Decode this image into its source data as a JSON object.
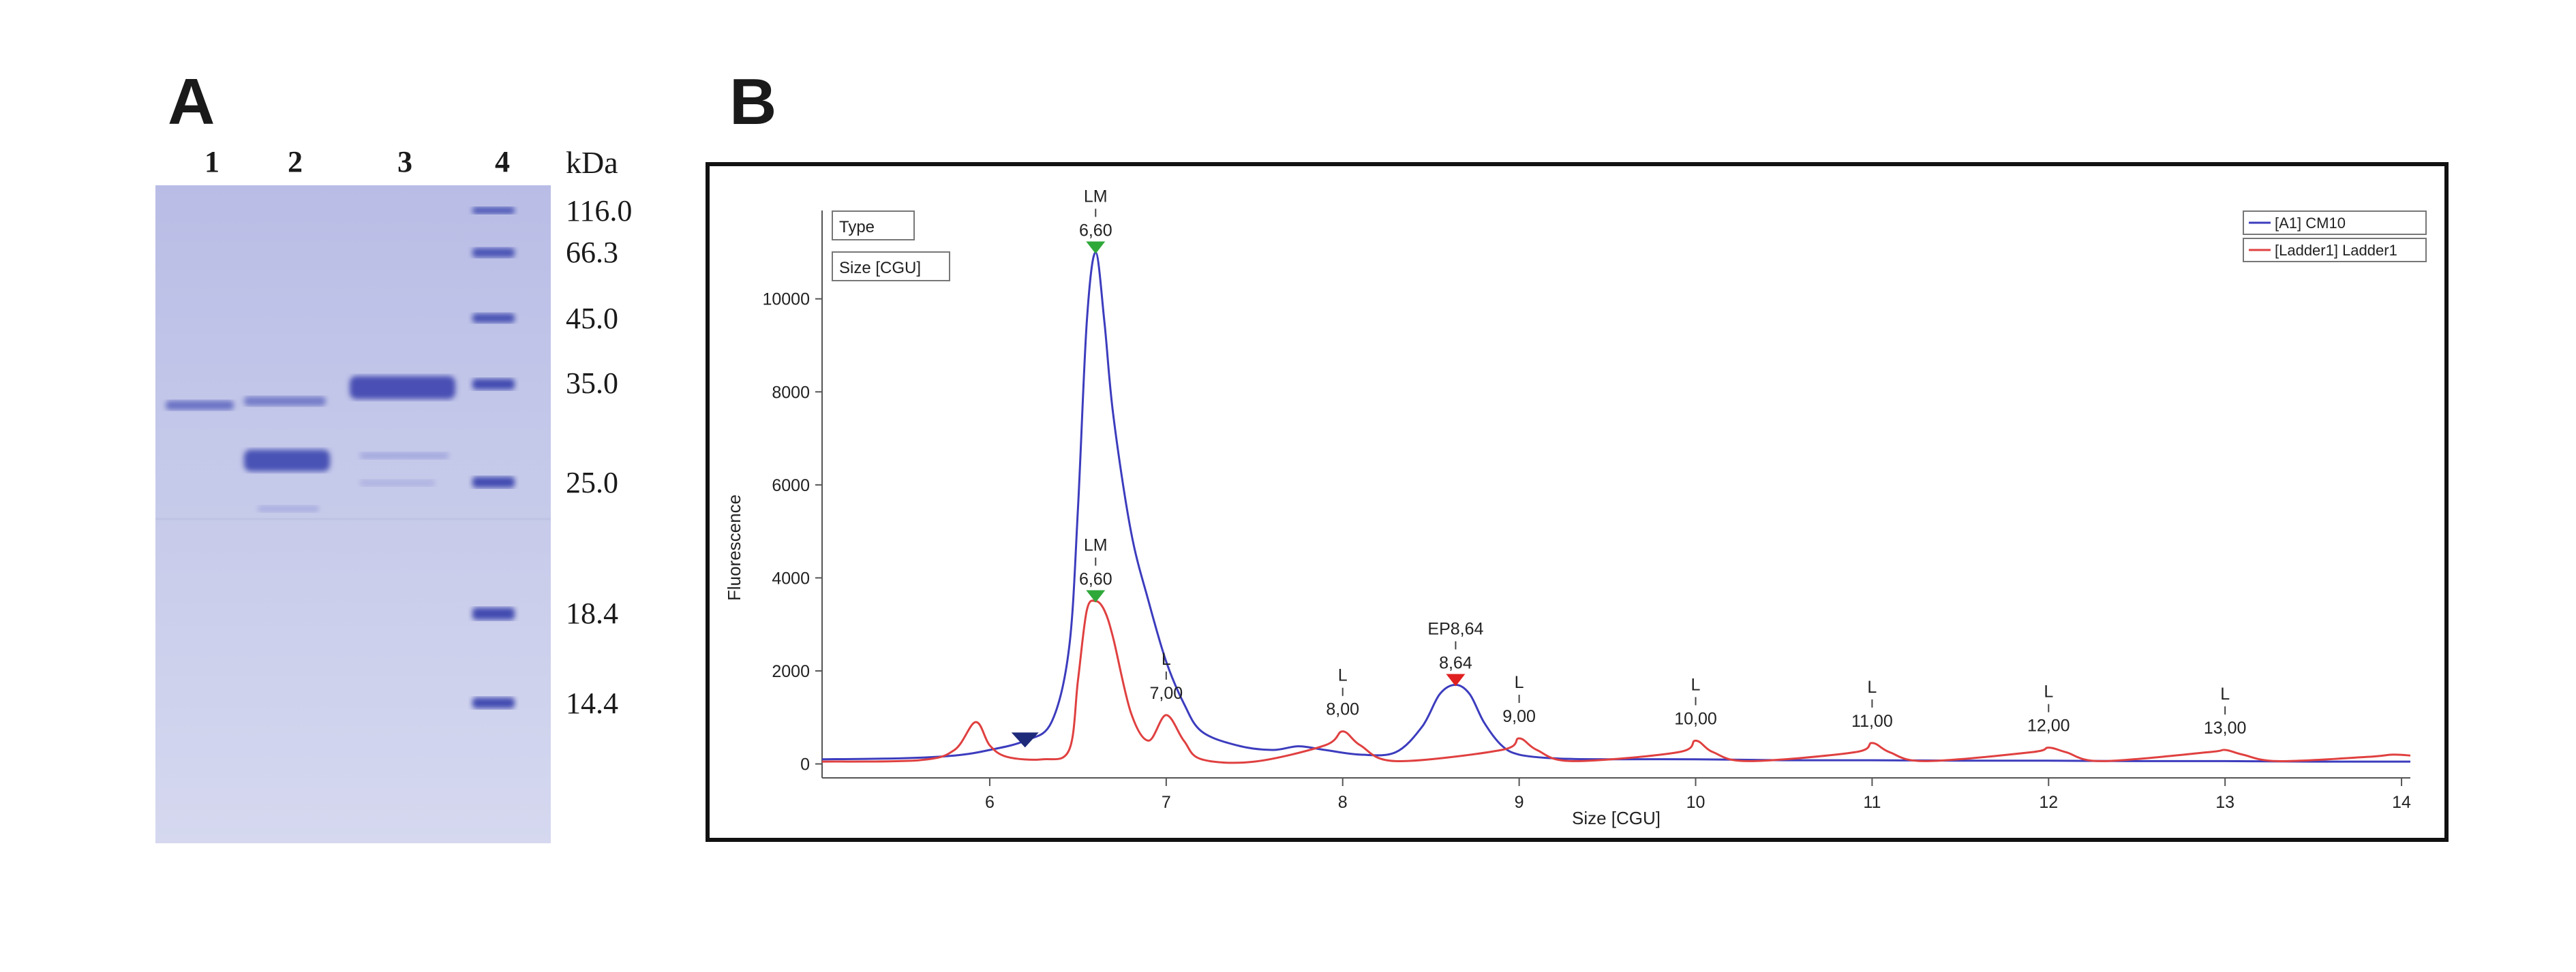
{
  "panels": {
    "a": "A",
    "b": "B"
  },
  "gel": {
    "lanes": [
      "1",
      "2",
      "3",
      "4"
    ],
    "unit": "kDa",
    "markers": [
      "116.0",
      "66.3",
      "45.0",
      "35.0",
      "25.0",
      "18.4",
      "14.4"
    ]
  },
  "chart_data": {
    "type": "line",
    "xlabel": "Size [CGU]",
    "ylabel": "Fluorescence",
    "xlim": [
      5.05,
      14.05
    ],
    "ylim": [
      -300,
      11900
    ],
    "xticks": [
      6,
      7,
      8,
      9,
      10,
      11,
      12,
      13,
      14
    ],
    "yticks": [
      0,
      2000,
      4000,
      6000,
      8000,
      10000
    ],
    "grid": false,
    "legend_position": "top-right",
    "info_boxes": [
      "Type",
      "Size [CGU]"
    ],
    "series": [
      {
        "name": "[A1] CM10",
        "color": "#3c3cbe",
        "x": [
          5.05,
          5.5,
          5.8,
          6.0,
          6.2,
          6.35,
          6.45,
          6.5,
          6.55,
          6.6,
          6.65,
          6.7,
          6.8,
          6.9,
          7.0,
          7.1,
          7.2,
          7.4,
          7.6,
          7.75,
          7.9,
          8.1,
          8.3,
          8.45,
          8.55,
          8.64,
          8.72,
          8.8,
          8.9,
          9.0,
          9.2,
          9.5,
          10.0,
          10.5,
          11.0,
          11.5,
          12.0,
          12.5,
          13.0,
          13.5,
          14.05
        ],
        "y": [
          100,
          120,
          180,
          300,
          500,
          900,
          2500,
          5500,
          9500,
          11000,
          9500,
          7500,
          5000,
          3500,
          2200,
          1300,
          700,
          400,
          300,
          380,
          300,
          200,
          250,
          800,
          1500,
          1700,
          1500,
          900,
          400,
          200,
          120,
          100,
          100,
          80,
          80,
          70,
          70,
          60,
          60,
          50,
          50
        ]
      },
      {
        "name": "[Ladder1] Ladder1",
        "color": "#e04040",
        "x": [
          5.05,
          5.6,
          5.8,
          5.92,
          6.0,
          6.1,
          6.3,
          6.45,
          6.5,
          6.55,
          6.6,
          6.65,
          6.7,
          6.8,
          6.9,
          7.0,
          7.1,
          7.2,
          7.5,
          7.9,
          8.0,
          8.1,
          8.3,
          8.9,
          9.0,
          9.1,
          9.3,
          9.9,
          10.0,
          10.1,
          10.3,
          10.9,
          11.0,
          11.1,
          11.3,
          11.9,
          12.0,
          12.1,
          12.3,
          12.9,
          13.0,
          13.1,
          13.3,
          13.8,
          13.95,
          14.05
        ],
        "y": [
          50,
          80,
          300,
          900,
          400,
          150,
          100,
          300,
          1800,
          3300,
          3500,
          3300,
          2700,
          1100,
          500,
          1050,
          500,
          100,
          50,
          400,
          700,
          400,
          60,
          300,
          550,
          300,
          60,
          250,
          500,
          250,
          60,
          250,
          450,
          250,
          60,
          250,
          350,
          250,
          60,
          250,
          300,
          200,
          60,
          150,
          200,
          180
        ]
      }
    ],
    "annotations": [
      {
        "label": "LM",
        "value": "6,60",
        "x": 6.6,
        "y": 11000,
        "marker": "green"
      },
      {
        "label": "LM",
        "value": "6,60",
        "x": 6.6,
        "y": 3500,
        "marker": "green"
      },
      {
        "label": "L",
        "value": "7,00",
        "x": 7.0,
        "y": 1050,
        "marker": "none"
      },
      {
        "label": "L",
        "value": "8,00",
        "x": 8.0,
        "y": 700,
        "marker": "none"
      },
      {
        "label": "EP8,64",
        "value": "8,64",
        "x": 8.64,
        "y": 1700,
        "marker": "red"
      },
      {
        "label": "L",
        "value": "9,00",
        "x": 9.0,
        "y": 550,
        "marker": "none"
      },
      {
        "label": "L",
        "value": "10,00",
        "x": 10.0,
        "y": 500,
        "marker": "none"
      },
      {
        "label": "L",
        "value": "11,00",
        "x": 11.0,
        "y": 450,
        "marker": "none"
      },
      {
        "label": "L",
        "value": "12,00",
        "x": 12.0,
        "y": 350,
        "marker": "none"
      },
      {
        "label": "L",
        "value": "13,00",
        "x": 13.0,
        "y": 300,
        "marker": "none"
      }
    ],
    "extra_markers": [
      {
        "x": 6.2,
        "y": 500,
        "color": "navy"
      }
    ]
  }
}
